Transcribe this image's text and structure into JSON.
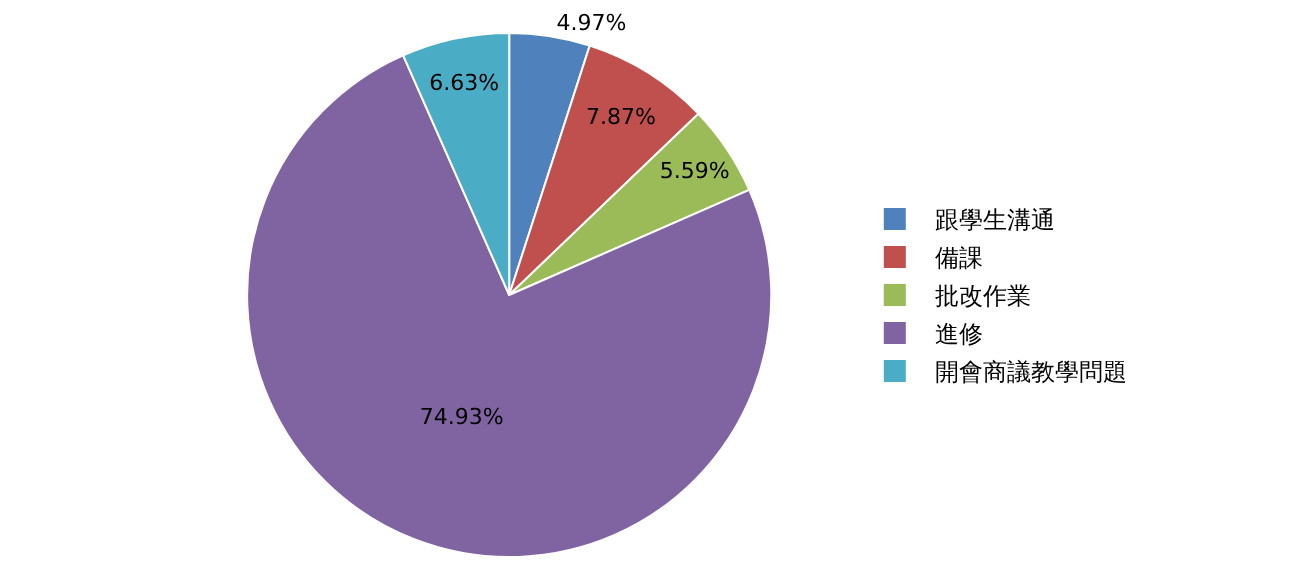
{
  "chart_data": {
    "type": "pie",
    "categories": [
      "跟學生溝通",
      "備課",
      "批改作業",
      "進修",
      "開會商議教學問題"
    ],
    "values": [
      4.97,
      7.87,
      5.59,
      74.93,
      6.63
    ],
    "value_labels": [
      "4.97%",
      "7.87%",
      "5.59%",
      "74.93%",
      "6.63%"
    ],
    "colors": [
      "#4f81bd",
      "#c0504d",
      "#9bbb59",
      "#8064a2",
      "#4bacc6"
    ],
    "legend": "right"
  }
}
